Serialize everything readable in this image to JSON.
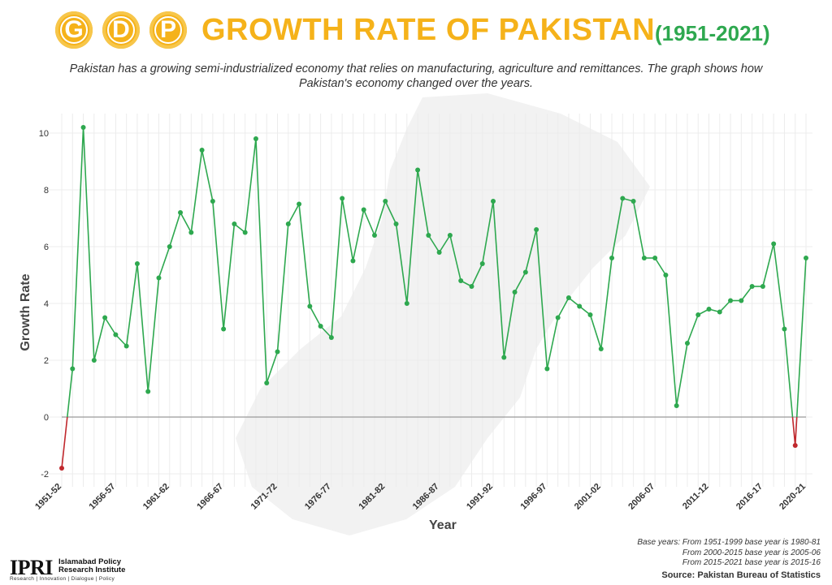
{
  "header": {
    "coins": [
      "G",
      "D",
      "P"
    ],
    "title": "GROWTH RATE OF PAKISTAN",
    "years": "(1951-2021)",
    "subtitle": "Pakistan has a growing semi-industrialized economy that relies on manufacturing, agriculture and remittances. The graph shows how Pakistan's economy changed over the years."
  },
  "colors": {
    "title": "#f5b21a",
    "years": "#2ea84f",
    "line": "#2ea84f",
    "negative": "#c0282d",
    "zero_line": "#9a9a9a"
  },
  "chart_data": {
    "type": "line",
    "xlabel": "Year",
    "ylabel": "Growth Rate",
    "ylim": [
      -2,
      10
    ],
    "yticks": [
      -2,
      0,
      2,
      4,
      6,
      8,
      10
    ],
    "grid": true,
    "categories": [
      "1951-52",
      "1952-53",
      "1953-54",
      "1954-55",
      "1955-56",
      "1956-57",
      "1957-58",
      "1958-59",
      "1959-60",
      "1960-61",
      "1961-62",
      "1962-63",
      "1963-64",
      "1964-65",
      "1965-66",
      "1966-67",
      "1967-68",
      "1968-69",
      "1969-70",
      "1970-71",
      "1971-72",
      "1972-73",
      "1973-74",
      "1974-75",
      "1975-76",
      "1976-77",
      "1977-78",
      "1978-79",
      "1979-80",
      "1980-81",
      "1981-82",
      "1982-83",
      "1983-84",
      "1984-85",
      "1985-86",
      "1986-87",
      "1987-88",
      "1988-89",
      "1989-90",
      "1990-91",
      "1991-92",
      "1992-93",
      "1993-94",
      "1994-95",
      "1995-96",
      "1996-97",
      "1997-98",
      "1998-99",
      "1999-00",
      "2000-01",
      "2001-02",
      "2002-03",
      "2003-04",
      "2004-05",
      "2005-06",
      "2006-07",
      "2007-08",
      "2008-09",
      "2009-10",
      "2010-11",
      "2011-12",
      "2012-13",
      "2013-14",
      "2014-15",
      "2015-16",
      "2016-17",
      "2017-18",
      "2018-19",
      "2019-20",
      "2020-21"
    ],
    "tick_labels": [
      "1951-52",
      "1956-57",
      "1961-62",
      "1966-67",
      "1971-72",
      "1976-77",
      "1981-82",
      "1986-87",
      "1991-92",
      "1996-97",
      "2001-02",
      "2006-07",
      "2011-12",
      "2016-17",
      "2020-21"
    ],
    "series": [
      {
        "values": [
          -1.8,
          1.7,
          10.2,
          2.0,
          3.5,
          2.9,
          2.5,
          5.4,
          0.9,
          4.9,
          6.0,
          7.2,
          6.5,
          9.4,
          7.6,
          3.1,
          6.8,
          6.5,
          9.8,
          1.2,
          2.3,
          6.8,
          7.5,
          3.9,
          3.2,
          2.8,
          7.7,
          5.5,
          7.3,
          6.4,
          7.6,
          6.8,
          4.0,
          8.7,
          6.4,
          5.8,
          6.4,
          4.8,
          4.6,
          5.4,
          7.6,
          2.1,
          4.4,
          5.1,
          6.6,
          1.7,
          3.5,
          4.2,
          3.9,
          3.6,
          2.4,
          5.6,
          7.7,
          7.6,
          5.6,
          5.6,
          5.0,
          0.4,
          2.6,
          3.6,
          3.8,
          3.7,
          4.1,
          4.1,
          4.6,
          4.6,
          6.1,
          3.1,
          -1.0,
          5.6
        ]
      }
    ]
  },
  "notes": {
    "lines": [
      "Base years:  From 1951-1999 base year is 1980-81",
      "From 2000-2015 base year is 2005-06",
      "From 2015-2021 base year is 2015-16"
    ],
    "source": "Source: Pakistan Bureau of Statistics"
  },
  "logo": {
    "text": "IPRI",
    "name_line1": "Islamabad Policy",
    "name_line2": "Research Institute",
    "tagline": "Research | Innovation | Dialogue | Policy"
  }
}
